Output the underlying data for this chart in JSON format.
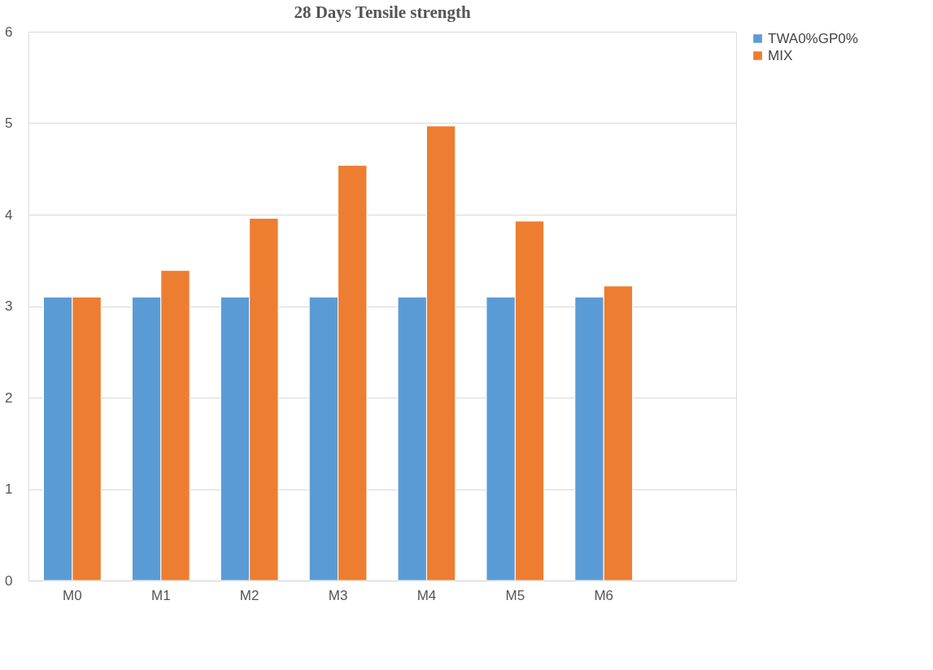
{
  "chart_data": {
    "type": "bar",
    "title": "28 Days Tensile strength",
    "categories": [
      "M0",
      "M1",
      "M2",
      "M3",
      "M4",
      "M5",
      "M6",
      null
    ],
    "series": [
      {
        "name": "TWA0%GP0%",
        "color": "#5b9bd5",
        "values": [
          3.1,
          3.1,
          3.1,
          3.1,
          3.1,
          3.1,
          3.1,
          null
        ]
      },
      {
        "name": "MIX",
        "color": "#ed7d31",
        "values": [
          3.1,
          3.39,
          3.96,
          4.54,
          4.97,
          3.93,
          3.22,
          null
        ]
      }
    ],
    "ylim": [
      0,
      6
    ],
    "yticks": [
      0,
      1,
      2,
      3,
      4,
      5,
      6
    ],
    "grid": "y",
    "legend": "right"
  }
}
